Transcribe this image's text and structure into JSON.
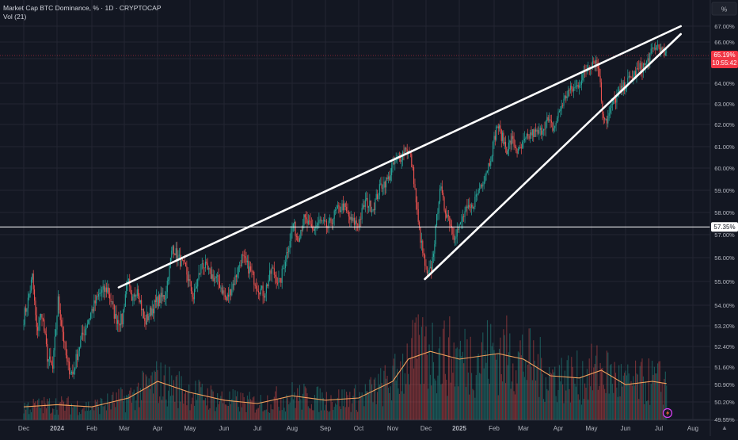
{
  "header": {
    "symbol_line": "Market Cap BTC Dominance, % · 1D · CRYPTOCAP",
    "indicator_line": "Vol (21)",
    "scale_unit": "%"
  },
  "price_labels": {
    "last_price": "65.19%",
    "countdown": "10:55:42",
    "horizontal_line_price": "57.35%"
  },
  "colors": {
    "background": "#131722",
    "grid": "#232632",
    "up": "#26a69a",
    "down": "#ef5350",
    "trendline": "#ffffff",
    "volume_ma": "#f5a25d",
    "axis_text": "#b2b5be",
    "last_price_label": "#f23645"
  },
  "chart_data": {
    "type": "candlestick",
    "y_axis": {
      "ticks": [
        "67.00%",
        "66.00%",
        "65.00%",
        "64.00%",
        "63.00%",
        "62.00%",
        "61.00%",
        "60.00%",
        "59.00%",
        "58.00%",
        "57.00%",
        "56.00%",
        "55.00%",
        "54.00%",
        "53.20%",
        "52.40%",
        "51.60%",
        "50.90%",
        "50.20%",
        "49.55%"
      ],
      "range": [
        49.55,
        67.3
      ]
    },
    "x_axis": {
      "ticks": [
        "Dec",
        "2024",
        "Feb",
        "Mar",
        "Apr",
        "May",
        "Jun",
        "Jul",
        "Aug",
        "Sep",
        "Oct",
        "Nov",
        "Dec",
        "2025",
        "Feb",
        "Mar",
        "Apr",
        "May",
        "Jun",
        "Jul",
        "Aug"
      ]
    },
    "close_series": [
      [
        "2023-12-01",
        53.5
      ],
      [
        "2023-12-05",
        54.2
      ],
      [
        "2023-12-09",
        55.2
      ],
      [
        "2023-12-13",
        53.0
      ],
      [
        "2023-12-18",
        53.7
      ],
      [
        "2023-12-23",
        52.0
      ],
      [
        "2023-12-28",
        51.5
      ],
      [
        "2024-01-02",
        54.2
      ],
      [
        "2024-01-06",
        53.0
      ],
      [
        "2024-01-10",
        51.7
      ],
      [
        "2024-01-15",
        51.3
      ],
      [
        "2024-01-20",
        52.3
      ],
      [
        "2024-01-25",
        53.0
      ],
      [
        "2024-02-01",
        53.8
      ],
      [
        "2024-02-08",
        54.5
      ],
      [
        "2024-02-15",
        54.7
      ],
      [
        "2024-02-22",
        53.5
      ],
      [
        "2024-02-28",
        53.4
      ],
      [
        "2024-03-04",
        55.2
      ],
      [
        "2024-03-08",
        54.0
      ],
      [
        "2024-03-13",
        54.8
      ],
      [
        "2024-03-20",
        53.3
      ],
      [
        "2024-03-26",
        53.8
      ],
      [
        "2024-04-01",
        54.2
      ],
      [
        "2024-04-08",
        54.4
      ],
      [
        "2024-04-15",
        56.5
      ],
      [
        "2024-04-20",
        56.0
      ],
      [
        "2024-04-27",
        55.5
      ],
      [
        "2024-05-04",
        54.3
      ],
      [
        "2024-05-12",
        55.8
      ],
      [
        "2024-05-19",
        55.3
      ],
      [
        "2024-05-27",
        55.0
      ],
      [
        "2024-06-03",
        54.2
      ],
      [
        "2024-06-10",
        55.0
      ],
      [
        "2024-06-17",
        56.0
      ],
      [
        "2024-06-24",
        55.5
      ],
      [
        "2024-07-01",
        54.8
      ],
      [
        "2024-07-07",
        54.5
      ],
      [
        "2024-07-14",
        55.5
      ],
      [
        "2024-07-21",
        54.9
      ],
      [
        "2024-07-28",
        56.4
      ],
      [
        "2024-08-02",
        57.5
      ],
      [
        "2024-08-06",
        56.8
      ],
      [
        "2024-08-12",
        57.7
      ],
      [
        "2024-08-20",
        57.2
      ],
      [
        "2024-08-27",
        57.6
      ],
      [
        "2024-09-03",
        57.3
      ],
      [
        "2024-09-10",
        58.0
      ],
      [
        "2024-09-17",
        58.3
      ],
      [
        "2024-09-24",
        57.6
      ],
      [
        "2024-10-01",
        57.5
      ],
      [
        "2024-10-07",
        58.5
      ],
      [
        "2024-10-14",
        58.2
      ],
      [
        "2024-10-21",
        59.2
      ],
      [
        "2024-10-28",
        59.5
      ],
      [
        "2024-11-03",
        60.3
      ],
      [
        "2024-11-08",
        60.5
      ],
      [
        "2024-11-13",
        61.0
      ],
      [
        "2024-11-17",
        60.5
      ],
      [
        "2024-11-20",
        59.5
      ],
      [
        "2024-11-24",
        57.5
      ],
      [
        "2024-11-28",
        56.2
      ],
      [
        "2024-12-02",
        55.2
      ],
      [
        "2024-12-06",
        55.5
      ],
      [
        "2024-12-10",
        57.2
      ],
      [
        "2024-12-14",
        59.2
      ],
      [
        "2024-12-18",
        58.2
      ],
      [
        "2024-12-22",
        57.8
      ],
      [
        "2024-12-27",
        57.0
      ],
      [
        "2025-01-01",
        57.3
      ],
      [
        "2025-01-06",
        58.0
      ],
      [
        "2025-01-12",
        58.2
      ],
      [
        "2025-01-18",
        59.0
      ],
      [
        "2025-01-23",
        59.6
      ],
      [
        "2025-01-28",
        60.3
      ],
      [
        "2025-02-01",
        61.3
      ],
      [
        "2025-02-04",
        62.0
      ],
      [
        "2025-02-08",
        61.5
      ],
      [
        "2025-02-13",
        60.9
      ],
      [
        "2025-02-18",
        61.3
      ],
      [
        "2025-02-24",
        60.7
      ],
      [
        "2025-03-02",
        61.2
      ],
      [
        "2025-03-08",
        61.6
      ],
      [
        "2025-03-15",
        61.6
      ],
      [
        "2025-03-22",
        62.2
      ],
      [
        "2025-03-28",
        61.8
      ],
      [
        "2025-04-03",
        62.8
      ],
      [
        "2025-04-10",
        63.6
      ],
      [
        "2025-04-17",
        63.8
      ],
      [
        "2025-04-22",
        64.2
      ],
      [
        "2025-04-28",
        64.7
      ],
      [
        "2025-05-04",
        65.0
      ],
      [
        "2025-05-08",
        64.5
      ],
      [
        "2025-05-11",
        62.6
      ],
      [
        "2025-05-15",
        62.2
      ],
      [
        "2025-05-20",
        63.0
      ],
      [
        "2025-05-26",
        63.5
      ],
      [
        "2025-06-02",
        64.0
      ],
      [
        "2025-06-08",
        64.3
      ],
      [
        "2025-06-14",
        64.6
      ],
      [
        "2025-06-20",
        64.8
      ],
      [
        "2025-06-25",
        65.5
      ],
      [
        "2025-06-30",
        65.8
      ],
      [
        "2025-07-04",
        65.4
      ],
      [
        "2025-07-08",
        65.19
      ]
    ],
    "volume_ma": [
      [
        "2023-12-01",
        0.12
      ],
      [
        "2024-01-01",
        0.14
      ],
      [
        "2024-02-01",
        0.12
      ],
      [
        "2024-03-05",
        0.2
      ],
      [
        "2024-04-01",
        0.35
      ],
      [
        "2024-05-01",
        0.25
      ],
      [
        "2024-06-01",
        0.18
      ],
      [
        "2024-07-01",
        0.15
      ],
      [
        "2024-08-01",
        0.22
      ],
      [
        "2024-09-01",
        0.18
      ],
      [
        "2024-10-01",
        0.2
      ],
      [
        "2024-11-01",
        0.35
      ],
      [
        "2024-11-15",
        0.55
      ],
      [
        "2024-12-05",
        0.62
      ],
      [
        "2025-01-01",
        0.55
      ],
      [
        "2025-02-05",
        0.6
      ],
      [
        "2025-03-01",
        0.55
      ],
      [
        "2025-03-25",
        0.4
      ],
      [
        "2025-04-20",
        0.38
      ],
      [
        "2025-05-10",
        0.45
      ],
      [
        "2025-06-01",
        0.32
      ],
      [
        "2025-06-25",
        0.35
      ],
      [
        "2025-07-08",
        0.33
      ]
    ],
    "volume_ma_axis": [
      0,
      1
    ],
    "trendlines": [
      {
        "from": [
          "2024-02-25",
          54.75
        ],
        "to": [
          "2025-07-21",
          67.0
        ]
      },
      {
        "from": [
          "2024-11-30",
          55.1
        ],
        "to": [
          "2025-07-21",
          66.5
        ]
      }
    ],
    "horizontal_line": 57.35,
    "grid": true,
    "legend": "top-left"
  }
}
